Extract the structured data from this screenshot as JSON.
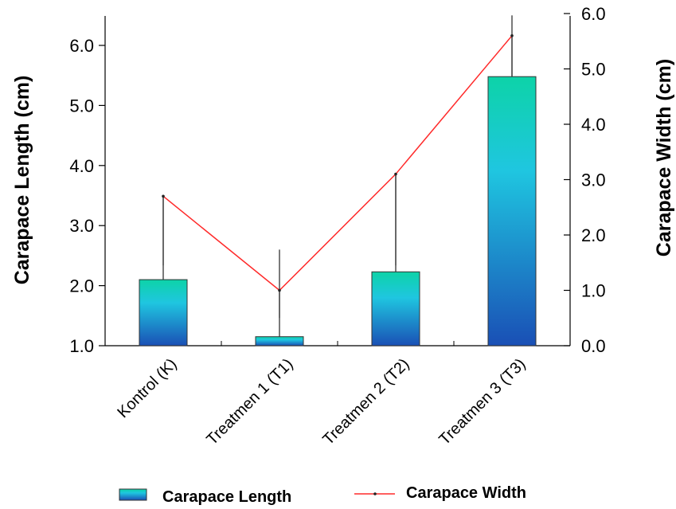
{
  "chart_data": {
    "type": "bar+line",
    "categories": [
      "Kontrol (K)",
      "Treatmen 1 (T1)",
      "Treatmen 2 (T2)",
      "Treatmen 3 (T3)"
    ],
    "series": [
      {
        "name": "Carapace Length",
        "type": "bar",
        "axis": "left",
        "values": [
          2.1,
          1.15,
          2.23,
          5.48
        ],
        "error_upper": [
          3.5,
          2.6,
          3.85,
          6.5
        ],
        "color_top": "#0dd3a8",
        "color_mid": "#1fc6e0",
        "color_bottom": "#1a4fb5"
      },
      {
        "name": "Carapace Width",
        "type": "line",
        "axis": "right",
        "values": [
          2.7,
          1.0,
          3.1,
          5.6
        ],
        "error_lower": [
          1.45,
          0.5,
          1.45,
          4.85
        ],
        "color": "#ff2a2a"
      }
    ],
    "y_left": {
      "label": "Carapace Length (cm)",
      "range": [
        1.0,
        6.5
      ],
      "ticks": [
        "1.0",
        "2.0",
        "3.0",
        "4.0",
        "5.0",
        "6.0"
      ]
    },
    "y_right": {
      "label": "Carapace Width (cm)",
      "range": [
        0.0,
        6.0
      ],
      "ticks": [
        "0.0",
        "1.0",
        "2.0",
        "3.0",
        "4.0",
        "5.0",
        "6.0"
      ]
    },
    "legend": {
      "placement": "bottom",
      "items": [
        {
          "label": "Carapace Length",
          "kind": "bar"
        },
        {
          "label": "Carapace Width",
          "kind": "line"
        }
      ]
    }
  }
}
